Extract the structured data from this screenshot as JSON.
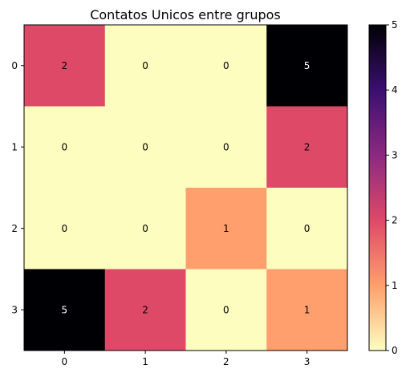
{
  "chart_data": {
    "type": "heatmap",
    "title": "Contatos Unicos entre grupos",
    "x_categories": [
      "0",
      "1",
      "2",
      "3"
    ],
    "y_categories": [
      "0",
      "1",
      "2",
      "3"
    ],
    "values": [
      [
        2,
        0,
        0,
        5
      ],
      [
        0,
        0,
        0,
        2
      ],
      [
        0,
        0,
        1,
        0
      ],
      [
        5,
        2,
        0,
        1
      ]
    ],
    "colormap": "magma_r",
    "vmin": 0,
    "vmax": 5,
    "colorbar_ticks": [
      0,
      1,
      2,
      3,
      4,
      5
    ],
    "cell_labels": true
  }
}
